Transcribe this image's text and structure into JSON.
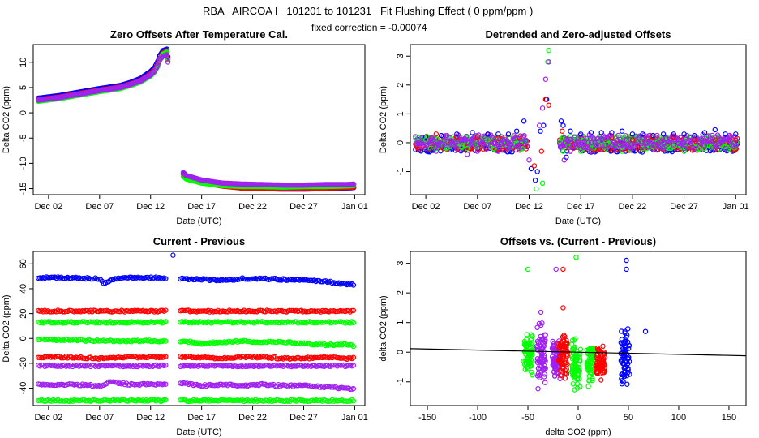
{
  "header": {
    "title": "RBA   AIRCOA I   101201 to 101231   Fit Flushing Effect ( 0 ppm/ppm )",
    "subtitle": "fixed correction = -0.00074"
  },
  "colors": {
    "blue": "#0000ff",
    "red": "#ff0000",
    "green": "#00ff00",
    "purple": "#a020f0",
    "line": "#000000"
  },
  "chart_data": [
    {
      "id": "p1",
      "type": "scatter",
      "title": "Zero Offsets After Temperature Cal.",
      "xlabel": "Date (UTC)",
      "ylabel": "Delta CO2 (ppm)",
      "xlim": [
        -0.5,
        32
      ],
      "ylim": [
        -16.2,
        13.5
      ],
      "xticks": [
        1,
        6,
        11,
        16,
        21,
        26,
        31
      ],
      "xtick_labels": [
        "Dec 02",
        "Dec 07",
        "Dec 12",
        "Dec 17",
        "Dec 22",
        "Dec 27",
        "Jan 01"
      ],
      "yticks": [
        -15,
        -10,
        -5,
        0,
        5,
        10
      ],
      "ytick_labels": [
        "-15",
        "-10",
        "-5",
        "0",
        "5",
        "10"
      ],
      "series": [
        {
          "name": "blue",
          "color": "#0000ff",
          "x": [
            0,
            2,
            4,
            6,
            8,
            9,
            10,
            11,
            11.4,
            11.7,
            11.9,
            12.2,
            12.6,
            14.2,
            14.5,
            16,
            18,
            20,
            22,
            24,
            26,
            28,
            30,
            31
          ],
          "y": [
            2.9,
            3.4,
            4.1,
            4.8,
            5.4,
            6.0,
            6.8,
            8.2,
            9.0,
            10.2,
            11.3,
            12.3,
            12.6,
            -12.0,
            -12.6,
            -13.6,
            -14.3,
            -14.9,
            -15.0,
            -15.1,
            -15.1,
            -15.0,
            -14.9,
            -14.8
          ]
        },
        {
          "name": "red",
          "color": "#ff0000",
          "x": [
            0,
            2,
            4,
            6,
            8,
            9,
            10,
            11,
            11.4,
            11.7,
            11.9,
            12.2,
            12.6,
            14.2,
            14.5,
            16,
            18,
            20,
            22,
            24,
            26,
            28,
            30,
            31
          ],
          "y": [
            2.6,
            3.1,
            3.8,
            4.5,
            5.1,
            5.7,
            6.4,
            7.7,
            8.5,
            9.6,
            10.7,
            11.8,
            12.2,
            -12.3,
            -12.9,
            -13.8,
            -14.5,
            -14.9,
            -15.0,
            -15.0,
            -15.0,
            -14.9,
            -14.8,
            -14.7
          ]
        },
        {
          "name": "green",
          "color": "#00ff00",
          "x": [
            0,
            2,
            4,
            6,
            8,
            9,
            10,
            11,
            11.4,
            11.7,
            11.9,
            12.2,
            12.6,
            14.2,
            14.5,
            16,
            18,
            20,
            22,
            24,
            26,
            28,
            30,
            31
          ],
          "y": [
            2.3,
            2.8,
            3.5,
            4.2,
            4.8,
            5.4,
            6.1,
            7.3,
            8.1,
            9.2,
            10.4,
            11.6,
            12.0,
            -12.6,
            -13.1,
            -13.9,
            -14.4,
            -14.6,
            -14.6,
            -14.7,
            -14.6,
            -14.6,
            -14.5,
            -14.4
          ]
        },
        {
          "name": "purple",
          "color": "#a020f0",
          "x": [
            0,
            2,
            4,
            6,
            8,
            9,
            10,
            11,
            11.4,
            11.7,
            11.9,
            12.2,
            12.6,
            14.2,
            14.5,
            16,
            18,
            20,
            22,
            24,
            26,
            28,
            30,
            31
          ],
          "y": [
            2.5,
            3.0,
            3.7,
            4.4,
            5.0,
            5.6,
            6.3,
            7.5,
            8.3,
            9.4,
            10.5,
            11.2,
            11.5,
            -11.8,
            -12.4,
            -13.3,
            -13.9,
            -14.1,
            -14.2,
            -14.3,
            -14.3,
            -14.2,
            -14.2,
            -14.1
          ]
        }
      ]
    },
    {
      "id": "p2",
      "type": "scatter",
      "title": "Detrended and Zero-adjusted Offsets",
      "xlabel": "Date (UTC)",
      "ylabel": "Delta CO2 (ppm)",
      "xlim": [
        -0.5,
        32
      ],
      "ylim": [
        -1.8,
        3.4
      ],
      "xticks": [
        1,
        6,
        11,
        16,
        21,
        26,
        31
      ],
      "xtick_labels": [
        "Dec 02",
        "Dec 07",
        "Dec 12",
        "Dec 17",
        "Dec 22",
        "Dec 27",
        "Jan 01"
      ],
      "yticks": [
        -1,
        0,
        1,
        2,
        3
      ],
      "ytick_labels": [
        "-1",
        "0",
        "1",
        "2",
        "3"
      ],
      "band": {
        "x0": 0,
        "x1": 31.2,
        "y_low": -0.25,
        "y_high": 0.2,
        "gap": [
          12.8,
          13.9
        ]
      },
      "series": [
        {
          "name": "blue",
          "color": "#0000ff",
          "x": [
            1,
            2.5,
            4,
            5.5,
            7,
            8,
            9,
            9.8,
            10.5,
            11.2,
            11.6,
            11.8,
            12.1,
            12.4,
            12.7,
            14.1,
            14.3,
            14.6,
            15,
            16,
            17,
            18,
            19,
            20,
            21,
            22,
            23,
            24,
            25,
            26,
            27,
            28,
            29,
            30,
            31
          ],
          "y": [
            0.2,
            0.25,
            0.3,
            0.35,
            0.3,
            0.3,
            0.3,
            0.4,
            0.75,
            -0.9,
            -1.3,
            -1.0,
            0.4,
            0.6,
            1.5,
            0.75,
            0.6,
            -0.5,
            0.4,
            0.3,
            0.35,
            0.35,
            0.35,
            0.4,
            0.3,
            0.3,
            0.25,
            0.3,
            0.3,
            0.3,
            0.25,
            0.35,
            0.45,
            0.3,
            0.3
          ]
        },
        {
          "name": "red",
          "color": "#ff0000",
          "x": [
            2,
            4,
            6,
            8,
            10,
            11.5,
            12.2,
            12.6,
            12.9,
            14.2,
            15,
            17,
            19,
            21,
            23,
            25,
            27,
            29,
            31
          ],
          "y": [
            0.3,
            0.2,
            0.2,
            0.15,
            0.2,
            -0.8,
            -0.3,
            1.5,
            1.3,
            0.4,
            -0.3,
            -0.3,
            0.2,
            0.1,
            0.2,
            0.2,
            0.1,
            0.1,
            0.1
          ]
        },
        {
          "name": "green",
          "color": "#00ff00",
          "x": [
            1,
            3,
            5,
            7,
            9,
            11.7,
            12.3,
            12.8,
            12.9,
            14.3,
            16,
            18,
            20,
            22,
            24,
            26,
            28,
            30
          ],
          "y": [
            0.1,
            -0.2,
            -0.2,
            0.1,
            -0.2,
            -1.6,
            -1.4,
            2.8,
            3.2,
            -0.3,
            -0.3,
            -0.2,
            -0.3,
            -0.2,
            -0.2,
            -0.3,
            -0.2,
            -0.2
          ]
        },
        {
          "name": "purple",
          "color": "#a020f0",
          "x": [
            1,
            2,
            3,
            4,
            5,
            6,
            7,
            8,
            9,
            10,
            11,
            12,
            12.3,
            12.6,
            12.9,
            14.4,
            15,
            16,
            17,
            18,
            19,
            20,
            21,
            22,
            23,
            24,
            25,
            26,
            27,
            28,
            29,
            30,
            31
          ],
          "y": [
            -0.2,
            -0.3,
            -0.1,
            -0.2,
            -0.4,
            -0.3,
            -0.2,
            -0.3,
            -0.2,
            -0.2,
            -0.6,
            0.6,
            1.2,
            2.2,
            2.8,
            -0.6,
            -0.3,
            -0.2,
            -0.3,
            -0.2,
            -0.1,
            -0.2,
            -0.2,
            -0.1,
            -0.2,
            -0.2,
            -0.1,
            -0.2,
            -0.2,
            -0.1,
            -0.2,
            -0.2,
            -0.1
          ]
        }
      ]
    },
    {
      "id": "p3",
      "type": "scatter",
      "title": "Current - Previous",
      "xlabel": "Date (UTC)",
      "ylabel": "Delta CO2 (ppm)",
      "xlim": [
        -0.5,
        32
      ],
      "ylim": [
        -54,
        70
      ],
      "xticks": [
        1,
        6,
        11,
        16,
        21,
        26,
        31
      ],
      "xtick_labels": [
        "Dec 02",
        "Dec 07",
        "Dec 12",
        "Dec 17",
        "Dec 22",
        "Dec 27",
        "Jan 01"
      ],
      "yticks": [
        -40,
        -20,
        0,
        20,
        40,
        60
      ],
      "ytick_labels": [
        "-40",
        "-20",
        "0",
        "20",
        "40",
        "60"
      ],
      "gap": [
        12.6,
        13.9
      ],
      "series": [
        {
          "name": "blue",
          "color": "#0000ff",
          "x": [
            0,
            2,
            4,
            6,
            6.5,
            7,
            8,
            10,
            12.5,
            14,
            16,
            18,
            20,
            22,
            24,
            26,
            28,
            30,
            31
          ],
          "y": [
            49,
            49,
            48.5,
            48,
            44,
            47,
            48.5,
            49,
            48.5,
            48,
            47.5,
            47,
            48,
            48,
            47.5,
            47,
            46,
            44,
            43
          ],
          "outlier": [
            13.2,
            67
          ]
        },
        {
          "name": "red",
          "color": "#ff0000",
          "x": [
            0,
            4,
            8,
            12.5,
            14,
            20,
            26,
            31
          ],
          "y": [
            22,
            22,
            22,
            22,
            22,
            22,
            22,
            22
          ]
        },
        {
          "name": "green",
          "color": "#00ff00",
          "x": [
            0,
            4,
            8,
            12.5,
            14,
            20,
            26,
            31
          ],
          "y": [
            13,
            13,
            13,
            13,
            13,
            13,
            13,
            13
          ]
        },
        {
          "name": "green",
          "color": "#00ff00",
          "x": [
            0,
            3,
            6,
            9,
            12.5,
            14,
            16,
            18,
            20,
            22,
            24,
            26,
            28,
            30,
            31
          ],
          "y": [
            -1,
            -1,
            -2,
            -2,
            -2,
            -2,
            -4,
            -3,
            -2,
            -3,
            -3,
            -4,
            -5,
            -5,
            -6
          ]
        },
        {
          "name": "red",
          "color": "#ff0000",
          "x": [
            0,
            3,
            6,
            9,
            12.5,
            14,
            16,
            18,
            20,
            22,
            24,
            26,
            28,
            30,
            31
          ],
          "y": [
            -15,
            -15,
            -16,
            -15,
            -15,
            -15,
            -15,
            -16,
            -15,
            -15,
            -16,
            -16,
            -15,
            -16,
            -16
          ]
        },
        {
          "name": "purple",
          "color": "#a020f0",
          "x": [
            0,
            4,
            8,
            12.5,
            14,
            20,
            26,
            31
          ],
          "y": [
            -22,
            -22,
            -22,
            -22,
            -22,
            -22,
            -22,
            -22
          ]
        },
        {
          "name": "purple",
          "color": "#a020f0",
          "x": [
            0,
            3,
            6,
            7,
            9,
            12.5,
            14,
            16,
            18,
            20,
            22,
            24,
            26,
            28,
            30,
            31
          ],
          "y": [
            -37,
            -37,
            -38,
            -35,
            -37,
            -37,
            -36,
            -38,
            -37,
            -38,
            -37,
            -38,
            -38,
            -39,
            -40,
            -41
          ]
        },
        {
          "name": "green",
          "color": "#00ff00",
          "x": [
            0,
            4,
            8,
            12.5,
            14,
            20,
            26,
            31
          ],
          "y": [
            -50,
            -50,
            -50,
            -50,
            -50,
            -50,
            -50,
            -50
          ]
        }
      ]
    },
    {
      "id": "p4",
      "type": "scatter",
      "title": "Offsets vs. (Current - Previous)",
      "xlabel": "delta CO2 (ppm)",
      "ylabel": "delta CO2 (ppm)",
      "xlim": [
        -167,
        167
      ],
      "ylim": [
        -1.8,
        3.4
      ],
      "xticks": [
        -150,
        -100,
        -50,
        0,
        50,
        100,
        150
      ],
      "xtick_labels": [
        "-150",
        "-100",
        "-50",
        "0",
        "50",
        "100",
        "150"
      ],
      "yticks": [
        -1,
        0,
        1,
        2,
        3
      ],
      "ytick_labels": [
        "-1",
        "0",
        "1",
        "2",
        "3"
      ],
      "clusters": [
        {
          "color": "#00ff00",
          "x": -50,
          "y0": -0.8,
          "y1": 0.7
        },
        {
          "color": "#a020f0",
          "x": -37,
          "y0": -1.3,
          "y1": 1.3
        },
        {
          "color": "#a020f0",
          "x": -22,
          "y0": -1.0,
          "y1": 0.5
        },
        {
          "color": "#ff0000",
          "x": -15,
          "y0": -0.9,
          "y1": 0.8
        },
        {
          "color": "#00ff00",
          "x": -2,
          "y0": -1.5,
          "y1": 0.6
        },
        {
          "color": "#00ff00",
          "x": 13,
          "y0": -1.2,
          "y1": 0.5
        },
        {
          "color": "#ff0000",
          "x": 22,
          "y0": -1.1,
          "y1": 0.4
        },
        {
          "color": "#0000ff",
          "x": 47,
          "y0": -1.3,
          "y1": 0.9
        }
      ],
      "outliers": [
        {
          "color": "#00ff00",
          "x": -50,
          "y": 2.8
        },
        {
          "color": "#00ff00",
          "x": -2,
          "y": 3.2
        },
        {
          "color": "#a020f0",
          "x": -22,
          "y": 2.8
        },
        {
          "color": "#ff0000",
          "x": -15,
          "y": 2.8
        },
        {
          "color": "#ff0000",
          "x": -15,
          "y": 1.5
        },
        {
          "color": "#0000ff",
          "x": 48,
          "y": 3.1
        },
        {
          "color": "#0000ff",
          "x": 48,
          "y": 2.8
        },
        {
          "color": "#0000ff",
          "x": 67,
          "y": 0.7
        },
        {
          "color": "#a020f0",
          "x": -37,
          "y": 1.35
        }
      ],
      "fit_line": {
        "x": [
          -167,
          167
        ],
        "y": [
          0.12,
          -0.12
        ]
      }
    }
  ]
}
